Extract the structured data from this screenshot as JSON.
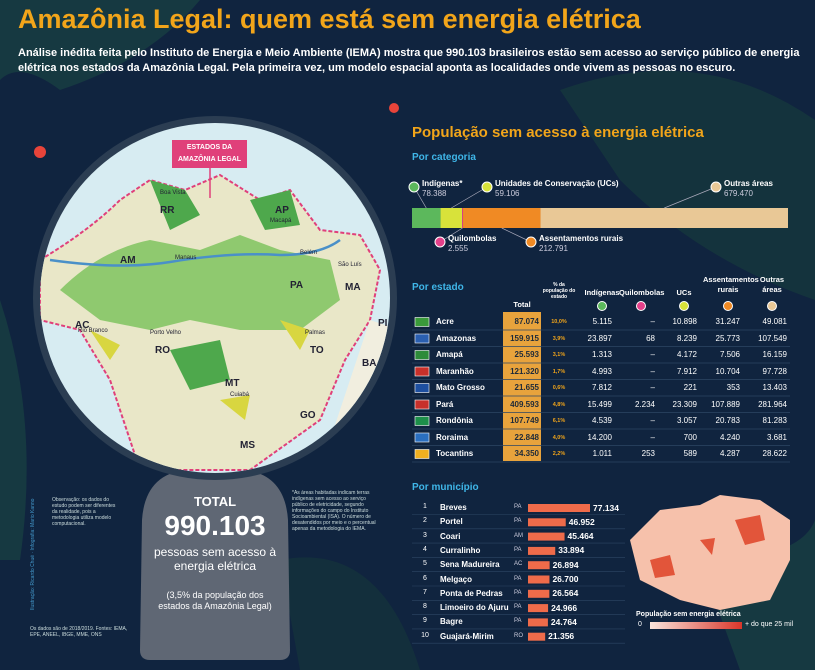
{
  "header": {
    "title": "Amazônia Legal: quem está sem energia elétrica",
    "intro": "Análise inédita feita pelo Instituto de Energia e Meio Ambiente (IEMA) mostra que 990.103 brasileiros estão sem acesso ao serviço público de energia elétrica nos estados da Amazônia Legal. Pela primeira vez, um modelo espacial aponta as localidades onde vivem as pessoas no escuro."
  },
  "map": {
    "label": "ESTADOS DA AMAZÔNIA LEGAL",
    "states": [
      "RR",
      "AP",
      "AM",
      "PA",
      "MA",
      "AC",
      "RO",
      "MT",
      "TO",
      "PI",
      "BA",
      "GO",
      "MS"
    ],
    "cities": [
      "Boa Vista",
      "Macapá",
      "Manaus",
      "Belém",
      "São Luís",
      "Rio Branco",
      "Porto Velho",
      "Palmas",
      "Cuiabá"
    ]
  },
  "total": {
    "label": "TOTAL",
    "value": "990.103",
    "text": "pessoas sem acesso à energia elétrica",
    "note": "(3,5% da população dos estados da Amazônia Legal)"
  },
  "notes": {
    "observation": "Observação: os dados do estudo podem ser diferentes da realidade, pois a metodologia utiliza modelo computacional.",
    "footnote": "*As áreas habitadas indicam terras indígenas sem acesso ao serviço público de eletricidade, segundo informações do campo do Instituto Socioambiental (ISA). O número de desatendidos por meio e o percentual apenas da metodologia do IEMA.",
    "source": "Os dados são de 2018/2019. Fontes: IEMA, EPE, ANEEL, IBGE, MME, ONS",
    "credits": "Ilustração: Ricardo Chué · Infografia: Mario Kanno"
  },
  "panel": {
    "title": "População sem acesso à energia elétrica",
    "by_category": {
      "title": "Por categoria",
      "items": [
        {
          "name": "Indígenas*",
          "value": 78388,
          "label": "78.388",
          "color": "#5cb85c"
        },
        {
          "name": "Unidades de Conservação (UCs)",
          "value": 59106,
          "label": "59.106",
          "color": "#d8e23a"
        },
        {
          "name": "Quilombolas",
          "value": 2555,
          "label": "2.555",
          "color": "#e4408a"
        },
        {
          "name": "Assentamentos rurais",
          "value": 212791,
          "label": "212.791",
          "color": "#f08a24"
        },
        {
          "name": "Outras áreas",
          "value": 679470,
          "label": "679.470",
          "color": "#e9c896"
        }
      ]
    },
    "by_state": {
      "title": "Por estado",
      "columns": [
        "Total",
        "% da população do estado",
        "Indígenas",
        "Quilombolas",
        "UCs",
        "Assentamentos rurais",
        "Outras áreas"
      ],
      "rows": [
        [
          "Acre",
          "87.074",
          "10,0%",
          "5.115",
          "–",
          "10.898",
          "31.247",
          "49.081"
        ],
        [
          "Amazonas",
          "159.915",
          "3,9%",
          "23.897",
          "68",
          "8.239",
          "25.773",
          "107.549"
        ],
        [
          "Amapá",
          "25.593",
          "3,1%",
          "1.313",
          "–",
          "4.172",
          "7.506",
          "16.159"
        ],
        [
          "Maranhão",
          "121.320",
          "1,7%",
          "4.993",
          "–",
          "7.912",
          "10.704",
          "97.728"
        ],
        [
          "Mato Grosso",
          "21.655",
          "0,6%",
          "7.812",
          "–",
          "221",
          "353",
          "13.403"
        ],
        [
          "Pará",
          "409.593",
          "4,8%",
          "15.499",
          "2.234",
          "23.309",
          "107.889",
          "281.964"
        ],
        [
          "Rondônia",
          "107.749",
          "6,1%",
          "4.539",
          "–",
          "3.057",
          "20.783",
          "81.283"
        ],
        [
          "Roraima",
          "22.848",
          "4,0%",
          "14.200",
          "–",
          "700",
          "4.240",
          "3.681"
        ],
        [
          "Tocantins",
          "34.350",
          "2,2%",
          "1.011",
          "253",
          "589",
          "4.287",
          "28.622"
        ]
      ]
    },
    "by_municipality": {
      "title": "Por município",
      "color": "#ef6b4a",
      "rows": [
        {
          "rank": 1,
          "name": "Breves",
          "state": "PA",
          "value": 77134,
          "label": "77.134"
        },
        {
          "rank": 2,
          "name": "Portel",
          "state": "PA",
          "value": 46952,
          "label": "46.952"
        },
        {
          "rank": 3,
          "name": "Coari",
          "state": "AM",
          "value": 45464,
          "label": "45.464"
        },
        {
          "rank": 4,
          "name": "Curralinho",
          "state": "PA",
          "value": 33894,
          "label": "33.894"
        },
        {
          "rank": 5,
          "name": "Sena Madureira",
          "state": "AC",
          "value": 26894,
          "label": "26.894"
        },
        {
          "rank": 6,
          "name": "Melgaço",
          "state": "PA",
          "value": 26700,
          "label": "26.700"
        },
        {
          "rank": 7,
          "name": "Ponta de Pedras",
          "state": "PA",
          "value": 26564,
          "label": "26.564"
        },
        {
          "rank": 8,
          "name": "Limoeiro do Ajuru",
          "state": "PA",
          "value": 24966,
          "label": "24.966"
        },
        {
          "rank": 9,
          "name": "Bagre",
          "state": "PA",
          "value": 24764,
          "label": "24.764"
        },
        {
          "rank": 10,
          "name": "Guajará-Mirim",
          "state": "RO",
          "value": 21356,
          "label": "21.356"
        }
      ]
    },
    "legend": {
      "title": "População sem energia elétrica",
      "min": "0",
      "max": "+ do que 25 mil"
    }
  }
}
